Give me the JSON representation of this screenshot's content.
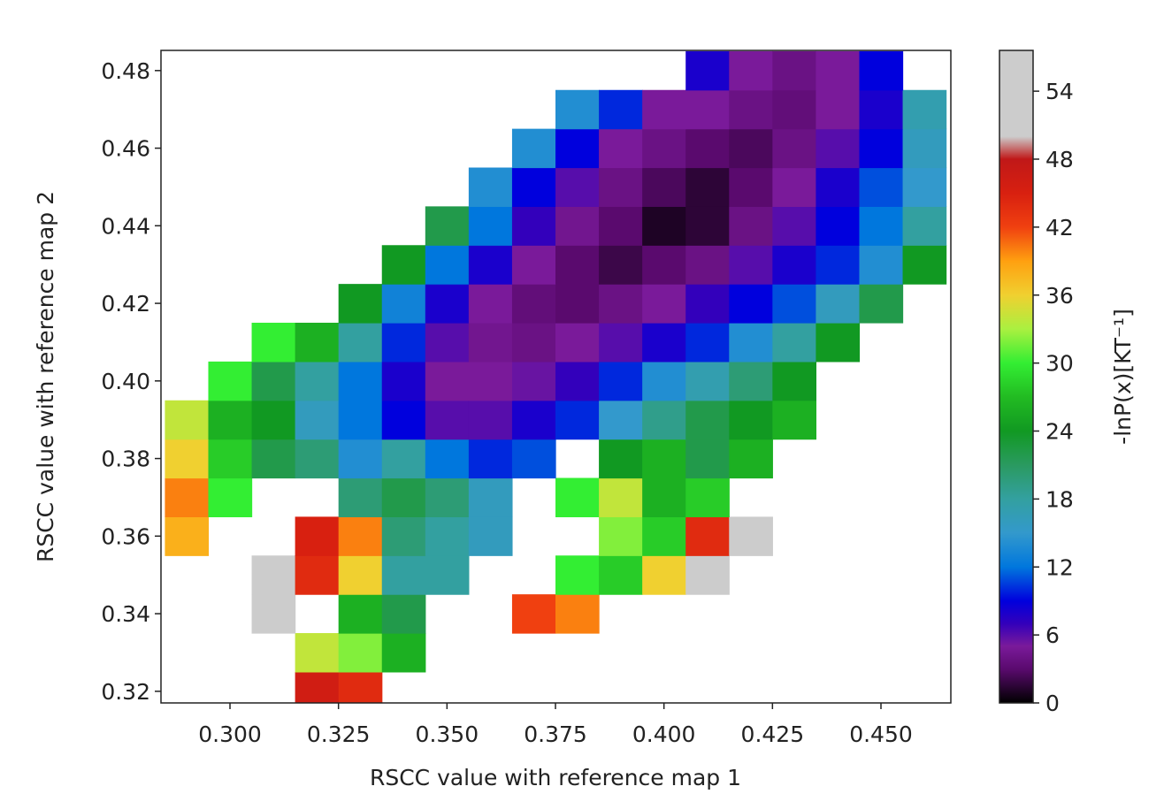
{
  "chart_data": {
    "type": "contour",
    "xlabel": "RSCC value with reference map 1",
    "ylabel": "RSCC value with reference map 2",
    "colorbar_label": "-lnP(x)[KT⁻¹]",
    "xlim": [
      0.2841,
      0.4661
    ],
    "ylim": [
      0.317,
      0.4852
    ],
    "xticks": [
      {
        "value": 0.3,
        "label": "0.300"
      },
      {
        "value": 0.325,
        "label": "0.325"
      },
      {
        "value": 0.35,
        "label": "0.350"
      },
      {
        "value": 0.375,
        "label": "0.375"
      },
      {
        "value": 0.4,
        "label": "0.400"
      },
      {
        "value": 0.425,
        "label": "0.425"
      },
      {
        "value": 0.45,
        "label": "0.450"
      }
    ],
    "yticks": [
      0.32,
      0.34,
      0.36,
      0.38,
      {
        "value": 0.4,
        "label": "0.40"
      },
      0.42,
      0.44,
      0.46,
      0.48
    ],
    "clim": [
      0,
      57.6
    ],
    "cticks": [
      0,
      6,
      12,
      18,
      24,
      30,
      36,
      42,
      48,
      54
    ],
    "colorscale": [
      [
        0,
        "#000000"
      ],
      [
        3,
        "#5a0a6e"
      ],
      [
        5,
        "#7a1a9a"
      ],
      [
        7,
        "#3300bb"
      ],
      [
        9,
        "#0000dd"
      ],
      [
        12,
        "#0077dd"
      ],
      [
        15,
        "#3399cc"
      ],
      [
        18,
        "#33a0a0"
      ],
      [
        21,
        "#2a9a60"
      ],
      [
        24,
        "#119922"
      ],
      [
        27,
        "#22bb22"
      ],
      [
        30,
        "#33ee33"
      ],
      [
        33,
        "#aaf040"
      ],
      [
        36,
        "#f0d030"
      ],
      [
        39,
        "#ffa010"
      ],
      [
        42,
        "#f04010"
      ],
      [
        45,
        "#d82010"
      ],
      [
        48,
        "#c01818"
      ],
      [
        50,
        "#cccccc"
      ],
      [
        57.6,
        "#cccccc"
      ]
    ],
    "x": [
      0.29,
      0.3,
      0.31,
      0.32,
      0.33,
      0.34,
      0.35,
      0.36,
      0.37,
      0.38,
      0.39,
      0.4,
      0.41,
      0.42,
      0.43,
      0.44,
      0.45,
      0.46
    ],
    "y": [
      0.32,
      0.33,
      0.34,
      0.35,
      0.36,
      0.37,
      0.38,
      0.39,
      0.4,
      0.41,
      0.42,
      0.43,
      0.44,
      0.45,
      0.46,
      0.47,
      0.48
    ],
    "z": [
      [
        null,
        null,
        null,
        46,
        44,
        null,
        null,
        null,
        null,
        null,
        null,
        null,
        null,
        null,
        null,
        null,
        null,
        null
      ],
      [
        null,
        null,
        null,
        34,
        32,
        26,
        null,
        null,
        null,
        null,
        null,
        null,
        null,
        null,
        null,
        null,
        null,
        null
      ],
      [
        null,
        null,
        54,
        null,
        26,
        22,
        null,
        null,
        42,
        40,
        null,
        null,
        null,
        null,
        null,
        null,
        null,
        null
      ],
      [
        null,
        null,
        54,
        44,
        36,
        18,
        18,
        null,
        null,
        30,
        28,
        36,
        50,
        null,
        null,
        null,
        null,
        null
      ],
      [
        38,
        null,
        null,
        45,
        40,
        20,
        18,
        16,
        null,
        null,
        32,
        28,
        44,
        52,
        null,
        null,
        null,
        null
      ],
      [
        40,
        30,
        null,
        null,
        20,
        22,
        20,
        16,
        null,
        30,
        34,
        26,
        28,
        null,
        null,
        null,
        null,
        null
      ],
      [
        36,
        28,
        22,
        20,
        14,
        18,
        12,
        10,
        11,
        null,
        24,
        26,
        22,
        26,
        null,
        null,
        null,
        null
      ],
      [
        34,
        26,
        24,
        16,
        12,
        9,
        6,
        6,
        8,
        10,
        15,
        19,
        22,
        24,
        26,
        null,
        null,
        null
      ],
      [
        null,
        30,
        22,
        18,
        12,
        8,
        5,
        5,
        5.5,
        7,
        10,
        14,
        17,
        20,
        24,
        null,
        null,
        null
      ],
      [
        null,
        null,
        30,
        26,
        18,
        10,
        6,
        4.5,
        4,
        5,
        6,
        8,
        10,
        14,
        18,
        24,
        null,
        null
      ],
      [
        null,
        null,
        null,
        null,
        24,
        13,
        8,
        5,
        3.5,
        3,
        4,
        5,
        7,
        9,
        11,
        16,
        22,
        null
      ],
      [
        null,
        null,
        null,
        null,
        null,
        24,
        12,
        8,
        5,
        3,
        2,
        3,
        4,
        6,
        8,
        10,
        14,
        24
      ],
      [
        null,
        null,
        null,
        null,
        null,
        null,
        22,
        12,
        7,
        4.5,
        3,
        1,
        1.5,
        4,
        6,
        9,
        12,
        18
      ],
      [
        null,
        null,
        null,
        null,
        null,
        null,
        null,
        14,
        9,
        6,
        4,
        2.5,
        1.5,
        3,
        5,
        8,
        11,
        15
      ],
      [
        null,
        null,
        null,
        null,
        null,
        null,
        null,
        null,
        14,
        9,
        5,
        4,
        3,
        2.5,
        4,
        6,
        9,
        16
      ],
      [
        null,
        null,
        null,
        null,
        null,
        null,
        null,
        null,
        null,
        14,
        10,
        5,
        5,
        4,
        3.5,
        5,
        8,
        17
      ],
      [
        null,
        null,
        null,
        null,
        null,
        null,
        null,
        null,
        null,
        null,
        null,
        null,
        8,
        5,
        4,
        5,
        9,
        null
      ]
    ]
  }
}
